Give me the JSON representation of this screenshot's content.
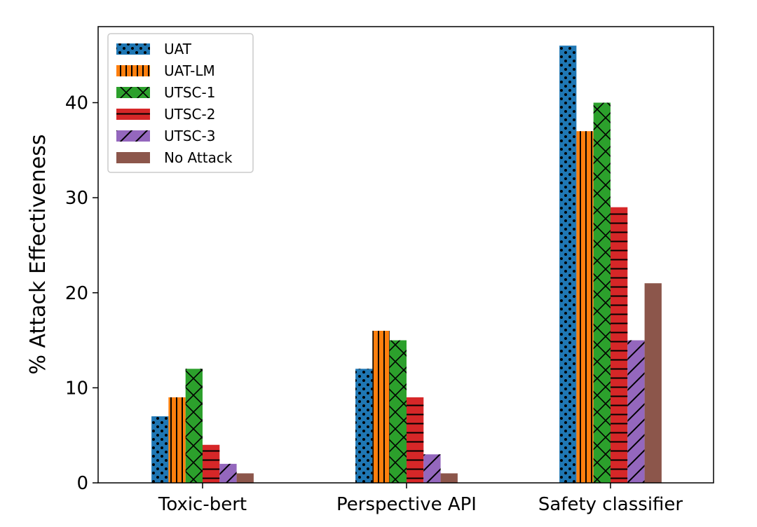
{
  "chart_data": {
    "type": "bar",
    "title": "",
    "xlabel": "",
    "ylabel": "% Attack Effectiveness",
    "ylim": [
      0,
      48
    ],
    "yticks": [
      0,
      10,
      20,
      30,
      40
    ],
    "categories": [
      "Toxic-bert",
      "Perspective API",
      "Safety classifier"
    ],
    "grid": false,
    "legend_position": "upper-left",
    "series": [
      {
        "name": "UAT",
        "values": [
          7,
          12,
          46
        ],
        "color": "#1f77b4",
        "hatch": "dots"
      },
      {
        "name": "UAT-LM",
        "values": [
          9,
          16,
          37
        ],
        "color": "#ff7f0e",
        "hatch": "vertical"
      },
      {
        "name": "UTSC-1",
        "values": [
          12,
          15,
          40
        ],
        "color": "#2ca02c",
        "hatch": "cross"
      },
      {
        "name": "UTSC-2",
        "values": [
          4,
          9,
          29
        ],
        "color": "#d62728",
        "hatch": "horizontal"
      },
      {
        "name": "UTSC-3",
        "values": [
          2,
          3,
          15
        ],
        "color": "#9467bd",
        "hatch": "diagonal"
      },
      {
        "name": "No Attack",
        "values": [
          1,
          1,
          21
        ],
        "color": "#8c564b",
        "hatch": "none"
      }
    ]
  }
}
